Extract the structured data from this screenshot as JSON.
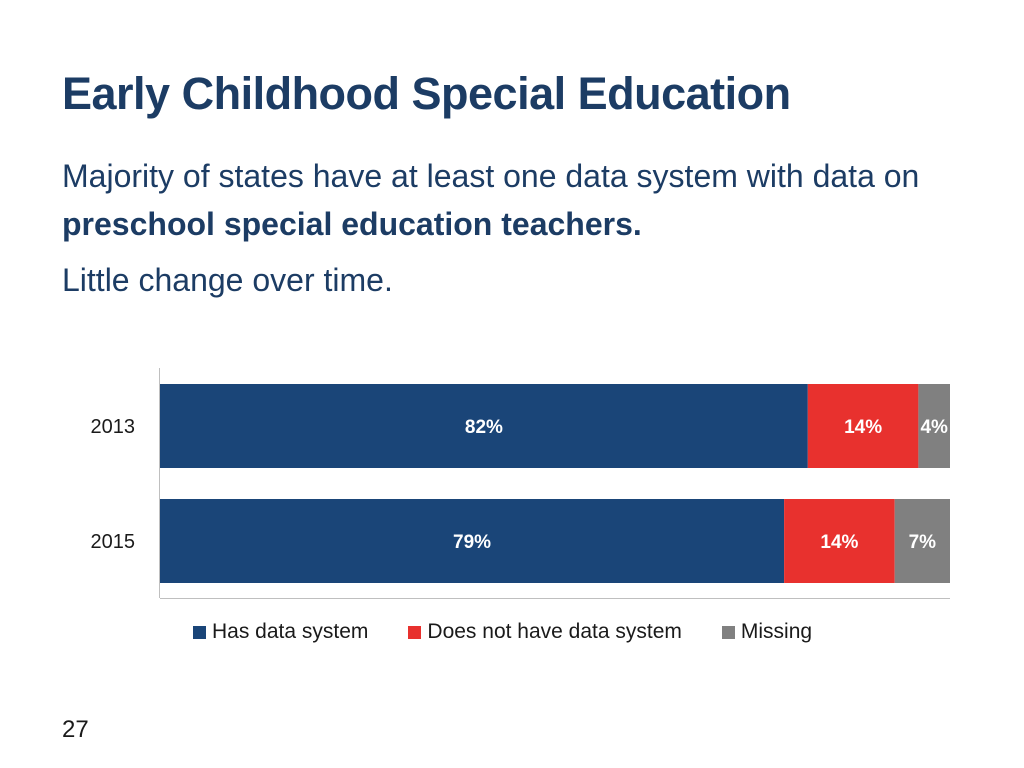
{
  "slide": {
    "title": "Early Childhood Special Education",
    "subtitle_part1": "Majority of states have at least one data system with data on ",
    "subtitle_bold": "preschool special education teachers.",
    "subnote": "Little change over time.",
    "page_number": "27"
  },
  "chart_data": {
    "type": "bar",
    "orientation": "horizontal",
    "stacked": true,
    "categories": [
      "2013",
      "2015"
    ],
    "series": [
      {
        "name": "Has data system",
        "values": [
          82,
          79
        ],
        "labels": [
          "82%",
          "79%"
        ],
        "color": "#1a4578"
      },
      {
        "name": "Does not have data system",
        "values": [
          14,
          14
        ],
        "labels": [
          "14%",
          "14%"
        ],
        "color": "#e8312e"
      },
      {
        "name": "Missing",
        "values": [
          4,
          7
        ],
        "labels": [
          "4%",
          "7%"
        ],
        "color": "#808080"
      }
    ],
    "xlim": [
      0,
      100
    ],
    "grid": false,
    "legend_position": "bottom"
  }
}
